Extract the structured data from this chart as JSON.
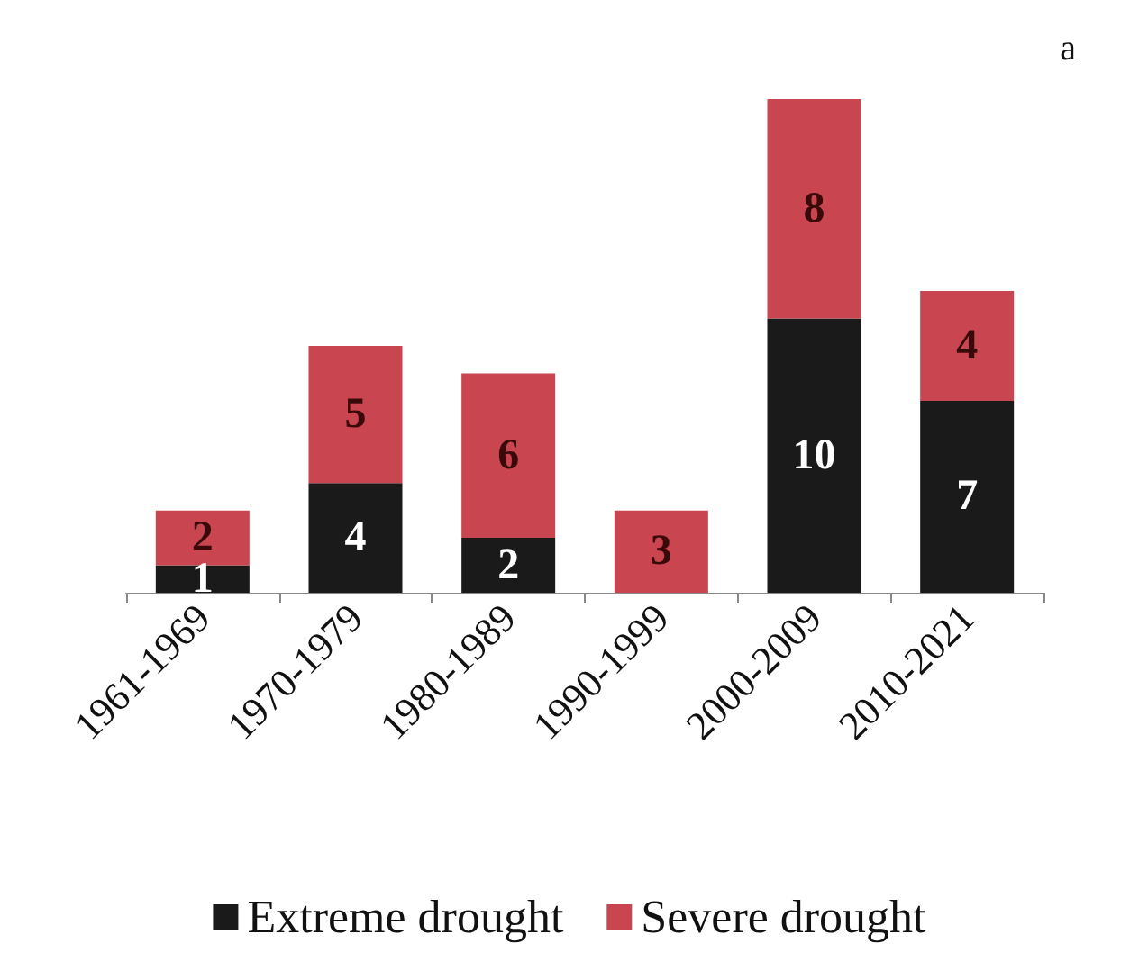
{
  "chart_data": {
    "type": "bar",
    "title": "a",
    "stacked": true,
    "data_labels": true,
    "legend": "bottom",
    "categories": [
      "1961-1969",
      "1970-1979",
      "1980-1989",
      "1990-1999",
      "2000-2009",
      "2010-2021"
    ],
    "series": [
      {
        "name": "Extreme drought",
        "color": "#1a1a1a",
        "values": [
          1,
          4,
          2,
          null,
          10,
          7
        ]
      },
      {
        "name": "Severe drought",
        "color": "#c9454f",
        "values": [
          2,
          5,
          6,
          3,
          8,
          4
        ]
      }
    ]
  }
}
